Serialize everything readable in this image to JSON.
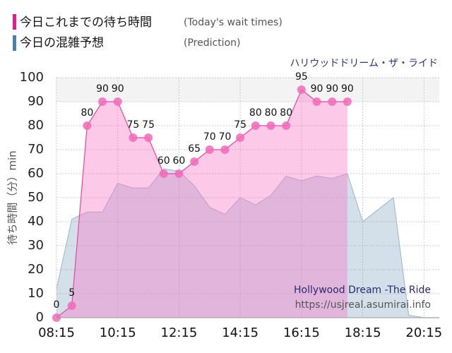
{
  "chart_data": {
    "type": "area",
    "title": "ハリウッドドリーム・ザ・ライド",
    "watermark": [
      "Hollywood Dream -The Ride",
      "https://usjreal.asumirai.info"
    ],
    "y_label": "待ち時間（分）min",
    "x": [
      "08:15",
      "08:45",
      "09:15",
      "09:45",
      "10:15",
      "10:45",
      "11:15",
      "11:45",
      "12:15",
      "12:45",
      "13:15",
      "13:45",
      "14:15",
      "14:45",
      "15:15",
      "15:45",
      "16:15",
      "16:45",
      "17:15",
      "17:45",
      "18:15",
      "18:45",
      "19:15",
      "19:45",
      "20:15",
      "20:45"
    ],
    "series": [
      {
        "name": "今日これまでの待ち時間",
        "subtitle": "(Today's wait times)",
        "color": "#e8459b",
        "values": [
          0,
          5,
          80,
          90,
          90,
          75,
          75,
          60,
          60,
          65,
          70,
          70,
          75,
          80,
          80,
          80,
          95,
          90,
          90,
          90,
          null,
          null,
          null,
          null,
          null,
          null
        ]
      },
      {
        "name": "今日の混雑予想",
        "subtitle": "(Prediction)",
        "color": "#4a7fb0",
        "values": [
          12,
          41,
          44,
          44,
          56,
          54,
          54,
          62,
          61,
          55,
          46,
          43,
          50,
          47,
          51,
          59,
          57,
          59,
          58,
          60,
          40,
          45,
          50,
          1,
          0,
          0
        ]
      }
    ],
    "xlim": [
      "08:15",
      "20:45"
    ],
    "xticks": [
      "08:15",
      "10:15",
      "12:15",
      "14:15",
      "16:15",
      "18:15",
      "20:15"
    ],
    "ylim": [
      0,
      100
    ],
    "yticks": [
      0,
      10,
      20,
      30,
      40,
      50,
      60,
      70,
      80,
      90,
      100
    ],
    "grid": true
  }
}
